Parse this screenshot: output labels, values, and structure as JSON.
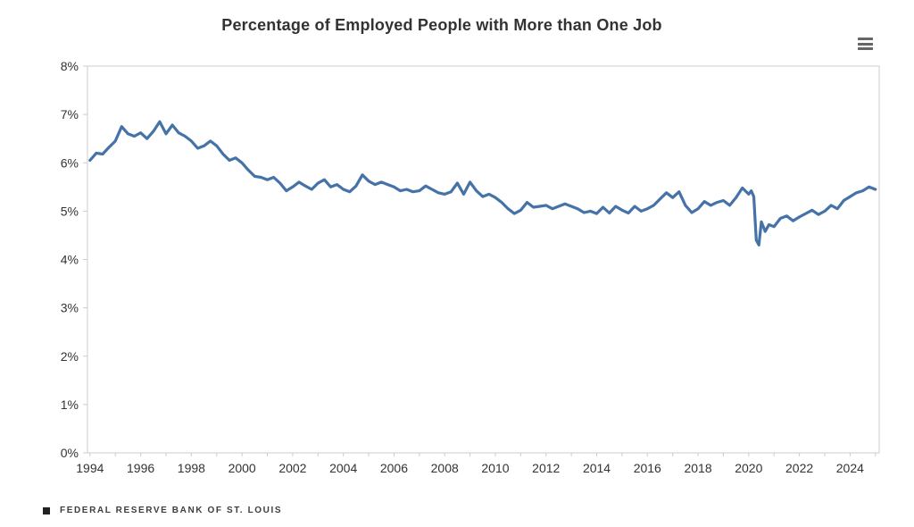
{
  "chart": {
    "title": "Percentage of Employed People with More than One Job",
    "footer": "FEDERAL RESERVE BANK OF ST. LOUIS",
    "menu_icon": "hamburger-menu-icon",
    "colors": {
      "line": "#4572a7",
      "axis": "#cccccc",
      "tick_label": "#333333",
      "title": "#333333",
      "menu": "#666666",
      "footer": "#3d3d3d"
    }
  },
  "chart_data": {
    "type": "line",
    "title": "Percentage of Employed People with More than One Job",
    "xlabel": "",
    "ylabel": "",
    "grid": false,
    "legend": false,
    "x_axis": {
      "min": 1993.9,
      "max": 2025.15,
      "minor_tick_step_years": 1,
      "label_years": [
        1994,
        1996,
        1998,
        2000,
        2002,
        2004,
        2006,
        2008,
        2010,
        2012,
        2014,
        2016,
        2018,
        2020,
        2022,
        2024
      ]
    },
    "y_axis": {
      "min": 0,
      "max": 8,
      "ticks": [
        0,
        1,
        2,
        3,
        4,
        5,
        6,
        7,
        8
      ],
      "tick_labels": [
        "0%",
        "1%",
        "2%",
        "3%",
        "4%",
        "5%",
        "6%",
        "7%",
        "8%"
      ]
    },
    "series": [
      {
        "points": [
          [
            1994.0,
            6.05
          ],
          [
            1994.25,
            6.2
          ],
          [
            1994.5,
            6.18
          ],
          [
            1994.75,
            6.32
          ],
          [
            1995.0,
            6.45
          ],
          [
            1995.25,
            6.75
          ],
          [
            1995.5,
            6.6
          ],
          [
            1995.75,
            6.55
          ],
          [
            1996.0,
            6.62
          ],
          [
            1996.25,
            6.5
          ],
          [
            1996.5,
            6.65
          ],
          [
            1996.75,
            6.85
          ],
          [
            1997.0,
            6.6
          ],
          [
            1997.25,
            6.78
          ],
          [
            1997.5,
            6.62
          ],
          [
            1997.75,
            6.55
          ],
          [
            1998.0,
            6.45
          ],
          [
            1998.25,
            6.3
          ],
          [
            1998.5,
            6.35
          ],
          [
            1998.75,
            6.45
          ],
          [
            1999.0,
            6.35
          ],
          [
            1999.25,
            6.18
          ],
          [
            1999.5,
            6.05
          ],
          [
            1999.75,
            6.1
          ],
          [
            2000.0,
            6.0
          ],
          [
            2000.25,
            5.85
          ],
          [
            2000.5,
            5.72
          ],
          [
            2000.75,
            5.7
          ],
          [
            2001.0,
            5.65
          ],
          [
            2001.25,
            5.7
          ],
          [
            2001.5,
            5.58
          ],
          [
            2001.75,
            5.42
          ],
          [
            2002.0,
            5.5
          ],
          [
            2002.25,
            5.6
          ],
          [
            2002.5,
            5.52
          ],
          [
            2002.75,
            5.45
          ],
          [
            2003.0,
            5.58
          ],
          [
            2003.25,
            5.65
          ],
          [
            2003.5,
            5.5
          ],
          [
            2003.75,
            5.55
          ],
          [
            2004.0,
            5.45
          ],
          [
            2004.25,
            5.4
          ],
          [
            2004.5,
            5.52
          ],
          [
            2004.75,
            5.75
          ],
          [
            2005.0,
            5.62
          ],
          [
            2005.25,
            5.55
          ],
          [
            2005.5,
            5.6
          ],
          [
            2005.75,
            5.55
          ],
          [
            2006.0,
            5.5
          ],
          [
            2006.25,
            5.42
          ],
          [
            2006.5,
            5.45
          ],
          [
            2006.75,
            5.4
          ],
          [
            2007.0,
            5.42
          ],
          [
            2007.25,
            5.52
          ],
          [
            2007.5,
            5.45
          ],
          [
            2007.75,
            5.38
          ],
          [
            2008.0,
            5.35
          ],
          [
            2008.25,
            5.4
          ],
          [
            2008.5,
            5.58
          ],
          [
            2008.75,
            5.35
          ],
          [
            2009.0,
            5.6
          ],
          [
            2009.25,
            5.42
          ],
          [
            2009.5,
            5.3
          ],
          [
            2009.75,
            5.35
          ],
          [
            2010.0,
            5.28
          ],
          [
            2010.25,
            5.18
          ],
          [
            2010.5,
            5.05
          ],
          [
            2010.75,
            4.95
          ],
          [
            2011.0,
            5.02
          ],
          [
            2011.25,
            5.18
          ],
          [
            2011.5,
            5.08
          ],
          [
            2011.75,
            5.1
          ],
          [
            2012.0,
            5.12
          ],
          [
            2012.25,
            5.05
          ],
          [
            2012.5,
            5.1
          ],
          [
            2012.75,
            5.15
          ],
          [
            2013.0,
            5.1
          ],
          [
            2013.25,
            5.05
          ],
          [
            2013.5,
            4.97
          ],
          [
            2013.75,
            5.0
          ],
          [
            2014.0,
            4.95
          ],
          [
            2014.25,
            5.08
          ],
          [
            2014.5,
            4.96
          ],
          [
            2014.75,
            5.1
          ],
          [
            2015.0,
            5.02
          ],
          [
            2015.25,
            4.96
          ],
          [
            2015.5,
            5.1
          ],
          [
            2015.75,
            5.0
          ],
          [
            2016.0,
            5.05
          ],
          [
            2016.25,
            5.12
          ],
          [
            2016.5,
            5.25
          ],
          [
            2016.75,
            5.38
          ],
          [
            2017.0,
            5.28
          ],
          [
            2017.25,
            5.4
          ],
          [
            2017.5,
            5.12
          ],
          [
            2017.75,
            4.97
          ],
          [
            2018.0,
            5.05
          ],
          [
            2018.25,
            5.2
          ],
          [
            2018.5,
            5.12
          ],
          [
            2018.75,
            5.18
          ],
          [
            2019.0,
            5.22
          ],
          [
            2019.25,
            5.12
          ],
          [
            2019.5,
            5.28
          ],
          [
            2019.75,
            5.48
          ],
          [
            2020.0,
            5.35
          ],
          [
            2020.1,
            5.42
          ],
          [
            2020.2,
            5.3
          ],
          [
            2020.3,
            4.4
          ],
          [
            2020.4,
            4.3
          ],
          [
            2020.5,
            4.78
          ],
          [
            2020.65,
            4.58
          ],
          [
            2020.8,
            4.72
          ],
          [
            2021.0,
            4.68
          ],
          [
            2021.25,
            4.85
          ],
          [
            2021.5,
            4.9
          ],
          [
            2021.75,
            4.8
          ],
          [
            2022.0,
            4.88
          ],
          [
            2022.25,
            4.95
          ],
          [
            2022.5,
            5.02
          ],
          [
            2022.75,
            4.93
          ],
          [
            2023.0,
            5.0
          ],
          [
            2023.25,
            5.12
          ],
          [
            2023.5,
            5.05
          ],
          [
            2023.75,
            5.22
          ],
          [
            2024.0,
            5.3
          ],
          [
            2024.25,
            5.38
          ],
          [
            2024.5,
            5.42
          ],
          [
            2024.75,
            5.5
          ],
          [
            2025.0,
            5.45
          ]
        ]
      }
    ]
  }
}
